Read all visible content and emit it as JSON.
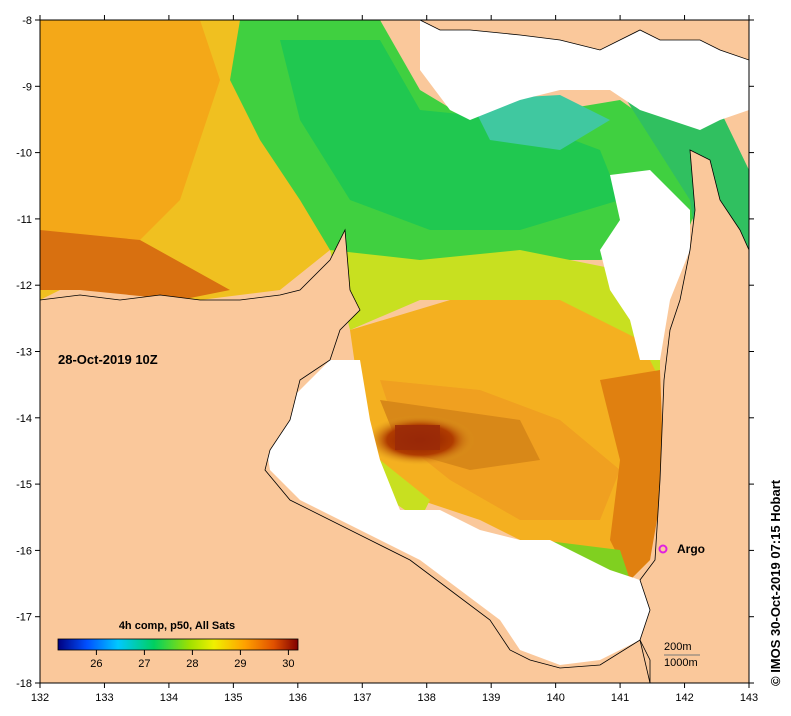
{
  "map": {
    "date_label": "28-Oct-2019 10Z",
    "credit": "© IMOS 30-Oct-2019 07:15 Hobart",
    "x_ticks": [
      "132",
      "133",
      "134",
      "135",
      "136",
      "137",
      "138",
      "139",
      "140",
      "141",
      "142",
      "143"
    ],
    "y_ticks": [
      "-8",
      "-9",
      "-10",
      "-11",
      "-12",
      "-13",
      "-14",
      "-15",
      "-16",
      "-17",
      "-18"
    ],
    "x_range": [
      132,
      143
    ],
    "y_range": [
      -18,
      -8
    ],
    "colorbar": {
      "title": "4h comp, p50, All Sats",
      "ticks": [
        "26",
        "27",
        "28",
        "29",
        "30"
      ]
    },
    "argo": {
      "label": "Argo",
      "lon": 141.7,
      "lat": -16.0
    },
    "isobaths": {
      "label_200": "200m",
      "label_1000": "1000m"
    },
    "colors": {
      "land": "#fac89b",
      "no_data": "#ffffff",
      "argo_marker": "#e020e0"
    }
  }
}
